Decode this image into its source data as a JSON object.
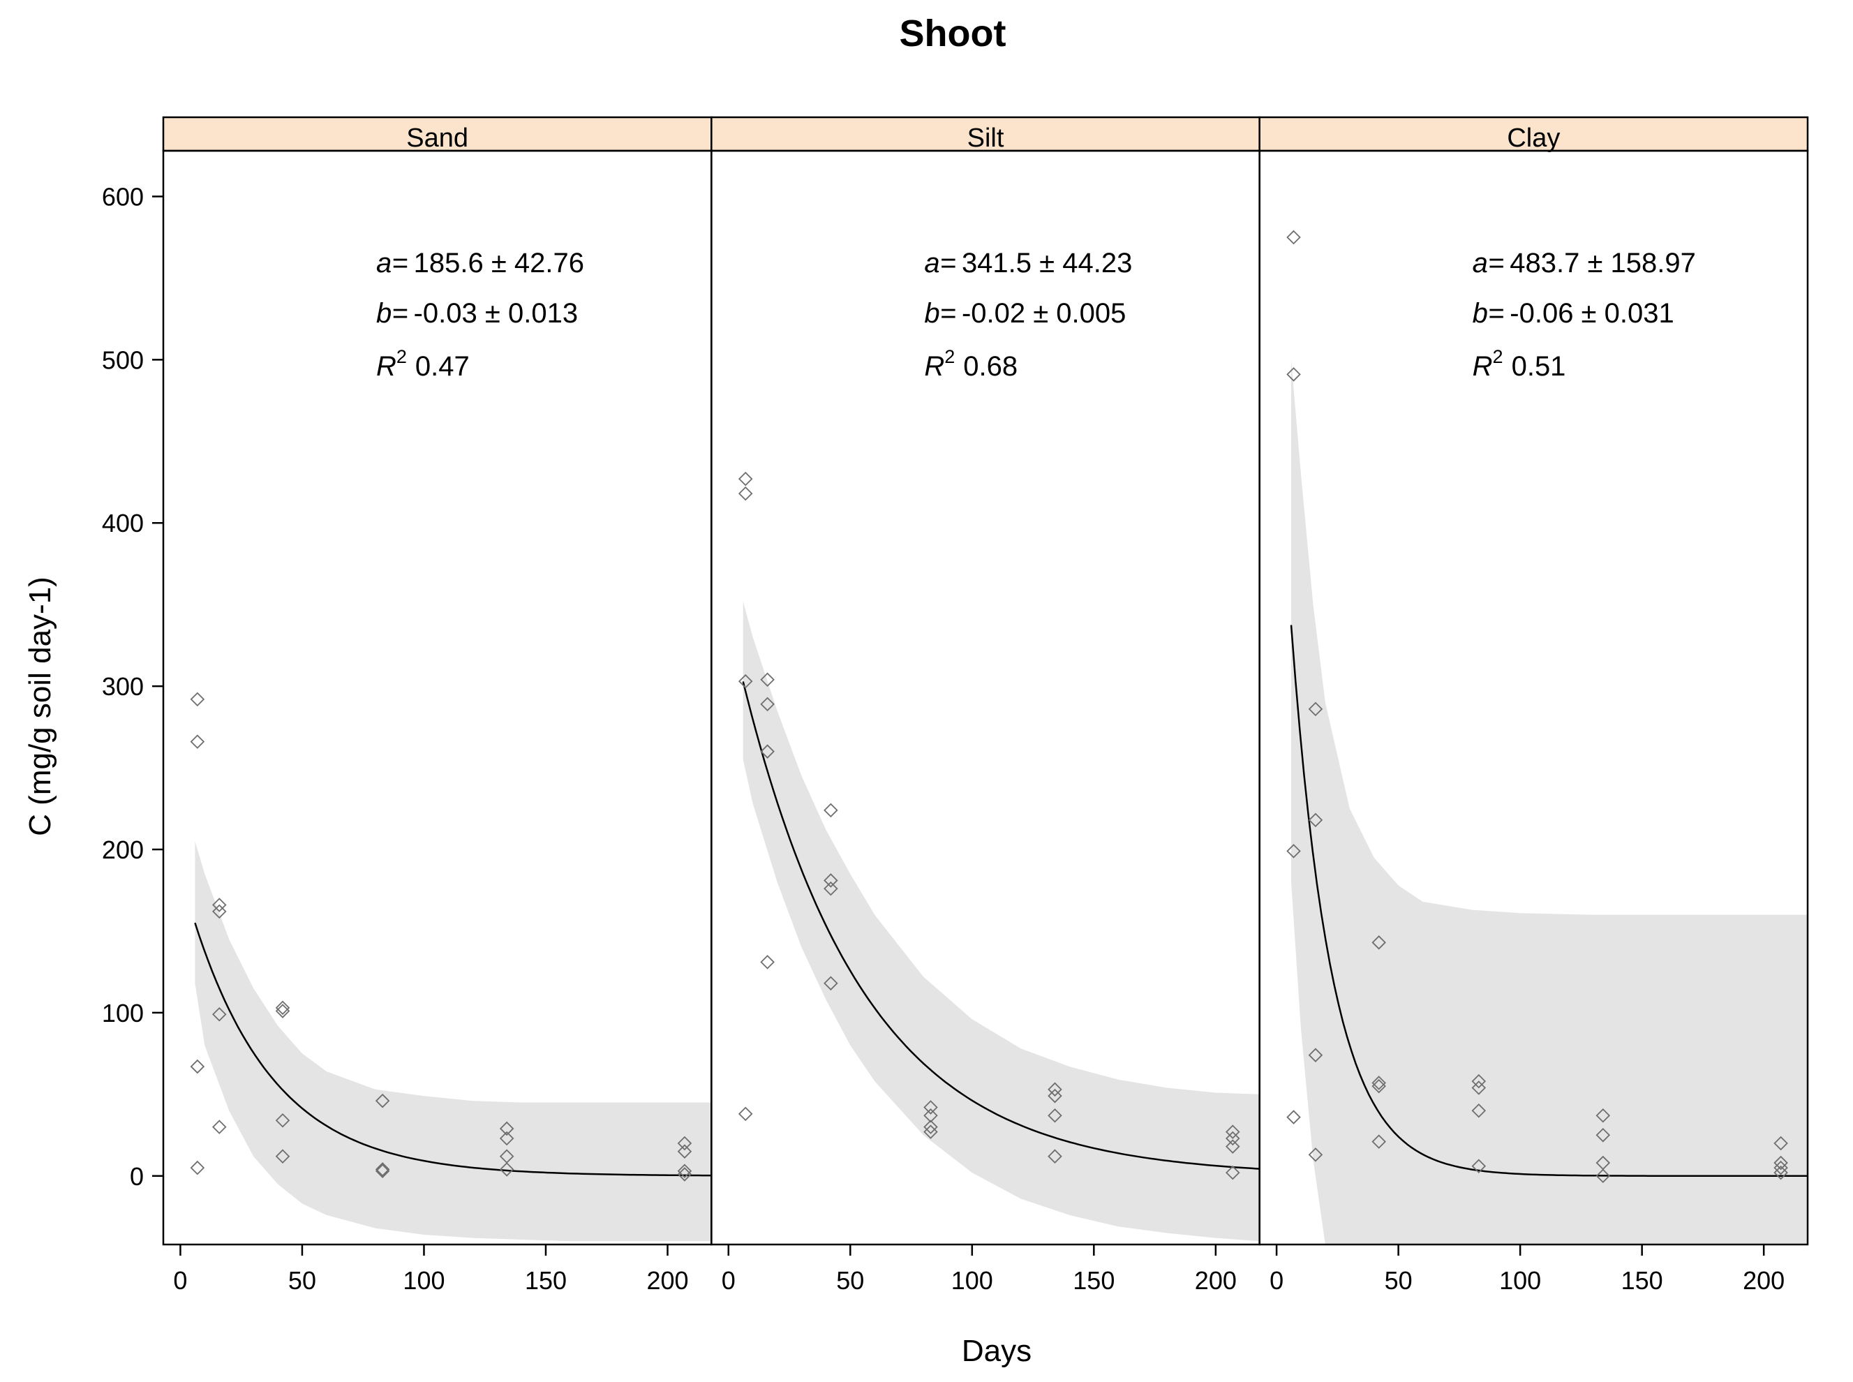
{
  "chart_data": {
    "type": "scatter",
    "title": "Shoot",
    "xlabel": "Days",
    "ylabel": "C (mg/g soil day-1)",
    "xlim": [
      -7,
      218
    ],
    "ylim": [
      -42,
      628
    ],
    "x_ticks": [
      0,
      50,
      100,
      150,
      200
    ],
    "y_ticks": [
      0,
      100,
      200,
      300,
      400,
      500,
      600
    ],
    "colors": {
      "strip": "#fce4cc",
      "band": "#e4e4e4",
      "points": "#6e6e6e",
      "curve": "#000000"
    },
    "panels": [
      {
        "name": "Sand",
        "annotation": {
          "a_label": "a=",
          "a_value": "185.6 ± 42.76",
          "b_label": "b=",
          "b_value": "-0.03 ± 0.013",
          "r2_label": "R",
          "r2_sup": "2",
          "r2_value": "0.47"
        },
        "fit": {
          "a": 185.6,
          "b": -0.03,
          "x_start": 6,
          "x_end": 218
        },
        "band": {
          "x": [
            6,
            10,
            20,
            30,
            40,
            50,
            60,
            80,
            100,
            120,
            140,
            160,
            180,
            200,
            218
          ],
          "upper": [
            205,
            185,
            145,
            115,
            92,
            75,
            64,
            53,
            49,
            46,
            45,
            45,
            45,
            45,
            45
          ],
          "lower": [
            118,
            80,
            40,
            12,
            -5,
            -17,
            -24,
            -32,
            -36,
            -38,
            -39,
            -40,
            -40,
            -40,
            -40
          ]
        },
        "points": [
          {
            "x": 7,
            "y": 292
          },
          {
            "x": 7,
            "y": 266
          },
          {
            "x": 7,
            "y": 67
          },
          {
            "x": 7,
            "y": 5
          },
          {
            "x": 16,
            "y": 166
          },
          {
            "x": 16,
            "y": 162
          },
          {
            "x": 16,
            "y": 99
          },
          {
            "x": 16,
            "y": 30
          },
          {
            "x": 42,
            "y": 103
          },
          {
            "x": 42,
            "y": 101
          },
          {
            "x": 42,
            "y": 34
          },
          {
            "x": 42,
            "y": 12
          },
          {
            "x": 83,
            "y": 46
          },
          {
            "x": 83,
            "y": 4
          },
          {
            "x": 83,
            "y": 3
          },
          {
            "x": 134,
            "y": 29
          },
          {
            "x": 134,
            "y": 23
          },
          {
            "x": 134,
            "y": 12
          },
          {
            "x": 134,
            "y": 4
          },
          {
            "x": 207,
            "y": 20
          },
          {
            "x": 207,
            "y": 15
          },
          {
            "x": 207,
            "y": 3
          },
          {
            "x": 207,
            "y": 1
          }
        ]
      },
      {
        "name": "Silt",
        "annotation": {
          "a_label": "a=",
          "a_value": "341.5 ± 44.23",
          "b_label": "b=",
          "b_value": "-0.02 ± 0.005",
          "r2_label": "R",
          "r2_sup": "2",
          "r2_value": "0.68"
        },
        "fit": {
          "a": 341.5,
          "b": -0.02,
          "x_start": 6,
          "x_end": 218
        },
        "band": {
          "x": [
            6,
            10,
            20,
            30,
            40,
            50,
            60,
            80,
            100,
            120,
            140,
            160,
            180,
            200,
            218
          ],
          "upper": [
            352,
            330,
            285,
            245,
            212,
            185,
            160,
            122,
            96,
            78,
            67,
            59,
            54,
            51,
            50
          ],
          "lower": [
            255,
            228,
            180,
            140,
            108,
            80,
            58,
            25,
            2,
            -14,
            -24,
            -31,
            -35,
            -38,
            -40
          ]
        },
        "points": [
          {
            "x": 7,
            "y": 427
          },
          {
            "x": 7,
            "y": 418
          },
          {
            "x": 7,
            "y": 303
          },
          {
            "x": 7,
            "y": 38
          },
          {
            "x": 16,
            "y": 304
          },
          {
            "x": 16,
            "y": 289
          },
          {
            "x": 16,
            "y": 260
          },
          {
            "x": 16,
            "y": 131
          },
          {
            "x": 42,
            "y": 224
          },
          {
            "x": 42,
            "y": 181
          },
          {
            "x": 42,
            "y": 176
          },
          {
            "x": 42,
            "y": 118
          },
          {
            "x": 83,
            "y": 42
          },
          {
            "x": 83,
            "y": 37
          },
          {
            "x": 83,
            "y": 30
          },
          {
            "x": 83,
            "y": 27
          },
          {
            "x": 134,
            "y": 53
          },
          {
            "x": 134,
            "y": 49
          },
          {
            "x": 134,
            "y": 37
          },
          {
            "x": 134,
            "y": 12
          },
          {
            "x": 207,
            "y": 27
          },
          {
            "x": 207,
            "y": 23
          },
          {
            "x": 207,
            "y": 18
          },
          {
            "x": 207,
            "y": 2
          }
        ]
      },
      {
        "name": "Clay",
        "annotation": {
          "a_label": "a=",
          "a_value": "483.7 ± 158.97",
          "b_label": "b=",
          "b_value": "-0.06 ± 0.031",
          "r2_label": "R",
          "r2_sup": "2",
          "r2_value": "0.51"
        },
        "fit": {
          "a": 483.7,
          "b": -0.06,
          "x_start": 6,
          "x_end": 218
        },
        "band": {
          "x": [
            6,
            10,
            15,
            20,
            30,
            40,
            50,
            60,
            80,
            100,
            130,
            160,
            190,
            218
          ],
          "upper": [
            500,
            430,
            350,
            290,
            225,
            195,
            178,
            168,
            163,
            161,
            160,
            160,
            160,
            160
          ],
          "lower": [
            180,
            90,
            10,
            -42,
            -42,
            -42,
            -42,
            -42,
            -42,
            -42,
            -42,
            -42,
            -42,
            -42
          ]
        },
        "points": [
          {
            "x": 7,
            "y": 575
          },
          {
            "x": 7,
            "y": 491
          },
          {
            "x": 7,
            "y": 199
          },
          {
            "x": 7,
            "y": 36
          },
          {
            "x": 16,
            "y": 286
          },
          {
            "x": 16,
            "y": 218
          },
          {
            "x": 16,
            "y": 74
          },
          {
            "x": 16,
            "y": 13
          },
          {
            "x": 42,
            "y": 143
          },
          {
            "x": 42,
            "y": 57
          },
          {
            "x": 42,
            "y": 55
          },
          {
            "x": 42,
            "y": 21
          },
          {
            "x": 83,
            "y": 58
          },
          {
            "x": 83,
            "y": 54
          },
          {
            "x": 83,
            "y": 40
          },
          {
            "x": 83,
            "y": 6
          },
          {
            "x": 134,
            "y": 37
          },
          {
            "x": 134,
            "y": 25
          },
          {
            "x": 134,
            "y": 8
          },
          {
            "x": 134,
            "y": 0
          },
          {
            "x": 207,
            "y": 20
          },
          {
            "x": 207,
            "y": 8
          },
          {
            "x": 207,
            "y": 5
          },
          {
            "x": 207,
            "y": 2
          }
        ]
      }
    ]
  }
}
